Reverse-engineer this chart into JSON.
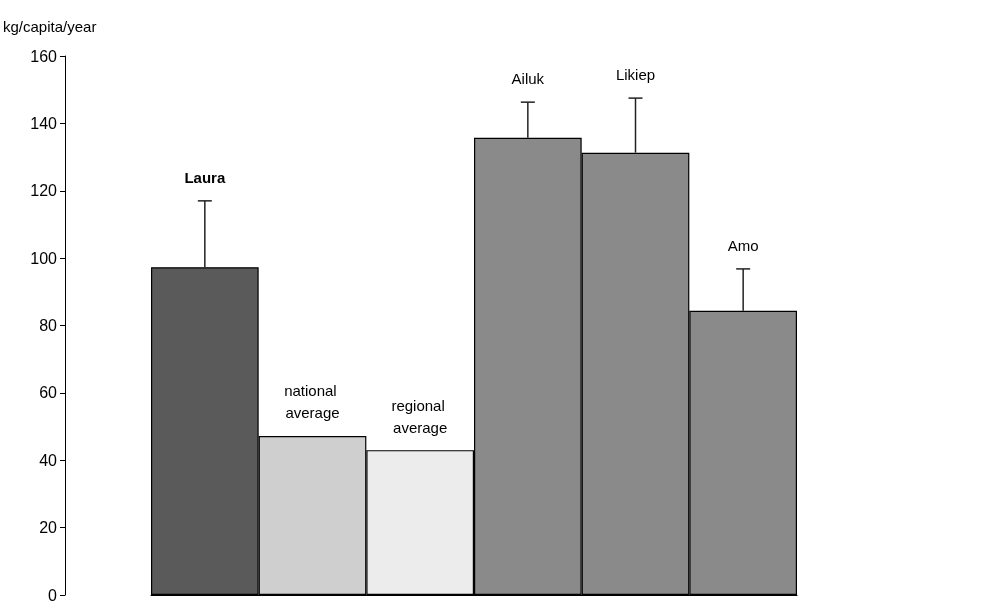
{
  "chart_data": {
    "type": "bar",
    "ylabel": "kg/capita/year",
    "categories": [
      "Laura",
      "national average",
      "regional average",
      "Ailuk",
      "Likiep",
      "Amo"
    ],
    "values": [
      97.3,
      47.2,
      43,
      135.7,
      131.3,
      84.4
    ],
    "colors": [
      "#5a5a5a",
      "#cfcfcf",
      "#ececec",
      "#8a8a8a",
      "#8a8a8a",
      "#8a8a8a"
    ],
    "errors": [
      [
        97.3,
        117
      ],
      null,
      null,
      [
        135.7,
        146.3
      ],
      [
        131.3,
        147.5
      ],
      [
        84.4,
        96.8
      ]
    ],
    "ylim": [
      0,
      160
    ],
    "yticks": [
      0,
      20,
      40,
      60,
      80,
      100,
      120,
      140,
      160
    ]
  }
}
